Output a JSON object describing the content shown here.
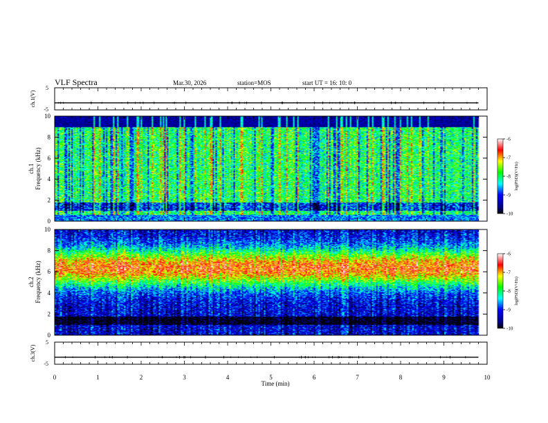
{
  "header": {
    "title": "VLF Spectra",
    "date": "Mar.30, 2026",
    "station": "station=MOS",
    "start": "start UT =  16: 10: 0"
  },
  "chart_data": [
    {
      "type": "line",
      "name": "ch1-voltage",
      "ylabel": "ch.1(V)",
      "ylim": [
        -5,
        5
      ],
      "y_ticks": [
        "5",
        "-5"
      ],
      "x": [
        0,
        1,
        2,
        3,
        4,
        5,
        6,
        7,
        8,
        9,
        9.8
      ],
      "values": [
        -1.8,
        -1.8,
        -1.8,
        -1.8,
        -1.8,
        -1.8,
        -1.8,
        -1.8,
        -1.8,
        -1.8,
        -1.8
      ]
    },
    {
      "type": "heatmap",
      "name": "ch1-spectrogram",
      "ylabel": "ch.1\nFrequency (kHz)",
      "ylim": [
        0,
        10
      ],
      "y_ticks": [
        "0",
        "2",
        "4",
        "6",
        "8",
        "10"
      ],
      "x_range_min": [
        0,
        9.8
      ],
      "colorbar": {
        "label": "log(PSD)(V²/Hz)",
        "range": [
          -10,
          -6
        ],
        "ticks": [
          "-6",
          "-7",
          "-8",
          "-9",
          "-10"
        ]
      },
      "features": {
        "low_noise_band_khz": [
          1.0,
          1.8
        ],
        "top_quiet_band_khz": [
          9.0,
          10.0
        ],
        "dominant_level": -8.2
      }
    },
    {
      "type": "heatmap",
      "name": "ch2-spectrogram",
      "ylabel": "ch.2\nFrequency (kHz)",
      "ylim": [
        0,
        10
      ],
      "y_ticks": [
        "0",
        "2",
        "4",
        "6",
        "8",
        "10"
      ],
      "x_range_min": [
        0,
        9.8
      ],
      "colorbar": {
        "label": "log(PSD)(V²/Hz)",
        "range": [
          -10,
          -6
        ],
        "ticks": [
          "-6",
          "-7",
          "-8",
          "-9",
          "-10"
        ]
      },
      "features": {
        "peak_band_khz": [
          5.0,
          7.8
        ],
        "peak_level": -6.8,
        "low_noise_band_khz": [
          1.0,
          1.8
        ]
      }
    },
    {
      "type": "line",
      "name": "ch3-voltage",
      "ylabel": "ch.3(V)",
      "ylim": [
        -5,
        5
      ],
      "y_ticks": [
        "5",
        "-5"
      ],
      "x": [
        0,
        1,
        2,
        3,
        4,
        5,
        6,
        7,
        8,
        9,
        9.8
      ],
      "values": [
        -1.8,
        -1.8,
        -1.8,
        -1.8,
        -1.8,
        -1.8,
        -1.8,
        -1.8,
        -1.8,
        -1.8,
        -1.8
      ]
    }
  ],
  "x_axis": {
    "label": "Time (min)",
    "xlim": [
      0,
      10
    ],
    "ticks": [
      "0",
      "1",
      "2",
      "3",
      "4",
      "5",
      "6",
      "7",
      "8",
      "9",
      "10"
    ]
  }
}
